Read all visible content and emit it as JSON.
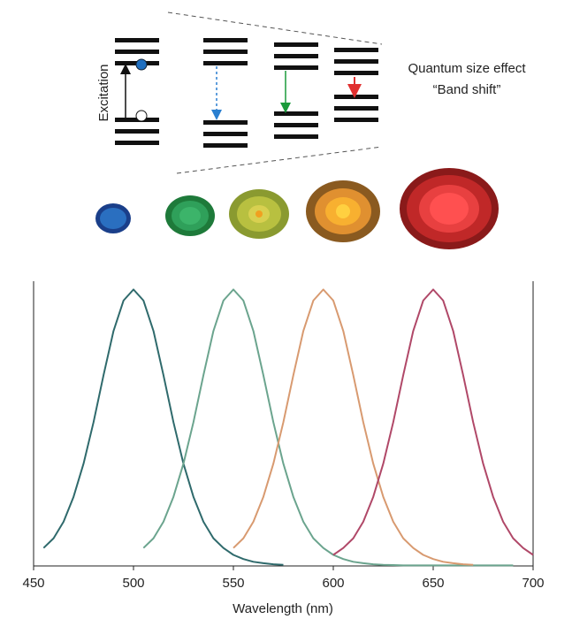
{
  "diagram": {
    "excitation_label": "Excitation",
    "title": "Quantum size effect",
    "subtitle": "“Band shift”"
  },
  "chart_data": {
    "type": "line",
    "x_label": "Wavelength (nm)",
    "x": [
      455,
      460,
      465,
      470,
      475,
      480,
      485,
      490,
      495,
      500,
      505,
      510,
      515,
      520,
      525,
      530,
      535,
      540,
      545,
      550,
      555,
      560,
      565,
      570,
      575,
      580,
      585,
      590,
      595,
      600,
      605,
      610,
      615,
      620,
      625,
      630,
      635,
      640,
      645,
      650,
      655,
      660,
      665,
      670,
      675,
      680,
      685,
      690,
      695,
      700
    ],
    "series": [
      {
        "color": "#2f6a6c",
        "values": [
          0.065,
          0.1,
          0.16,
          0.25,
          0.37,
          0.52,
          0.69,
          0.85,
          0.96,
          1,
          0.96,
          0.85,
          0.69,
          0.52,
          0.37,
          0.25,
          0.16,
          0.1,
          0.065,
          0.04,
          0.025,
          0.015,
          0.01,
          0.006,
          0.004,
          null,
          null,
          null,
          null,
          null,
          null,
          null,
          null,
          null,
          null,
          null,
          null,
          null,
          null,
          null,
          null,
          null,
          null,
          null,
          null,
          null,
          null,
          null,
          null,
          null
        ]
      },
      {
        "color": "#6ba48e",
        "values": [
          null,
          null,
          null,
          null,
          null,
          null,
          null,
          null,
          null,
          null,
          0.065,
          0.1,
          0.16,
          0.25,
          0.37,
          0.52,
          0.69,
          0.85,
          0.96,
          1,
          0.96,
          0.85,
          0.69,
          0.52,
          0.37,
          0.25,
          0.16,
          0.1,
          0.065,
          0.04,
          0.025,
          0.015,
          0.01,
          0.006,
          0.004,
          0.003,
          0.002,
          0.002,
          0.002,
          0.002,
          0.002,
          0.002,
          0.002,
          0.002,
          0.002,
          0.002,
          0.002,
          0.002,
          null,
          null
        ]
      },
      {
        "color": "#d89a70",
        "values": [
          null,
          null,
          null,
          null,
          null,
          null,
          null,
          null,
          null,
          null,
          null,
          null,
          null,
          null,
          null,
          null,
          null,
          null,
          null,
          0.065,
          0.1,
          0.16,
          0.25,
          0.37,
          0.52,
          0.69,
          0.85,
          0.96,
          1,
          0.96,
          0.85,
          0.69,
          0.52,
          0.37,
          0.25,
          0.16,
          0.1,
          0.065,
          0.04,
          0.025,
          0.015,
          0.01,
          0.006,
          0.004,
          null,
          null,
          null,
          null,
          null,
          null
        ]
      },
      {
        "color": "#b04868",
        "values": [
          null,
          null,
          null,
          null,
          null,
          null,
          null,
          null,
          null,
          null,
          null,
          null,
          null,
          null,
          null,
          null,
          null,
          null,
          null,
          null,
          null,
          null,
          null,
          null,
          null,
          null,
          null,
          null,
          null,
          0.04,
          0.065,
          0.1,
          0.16,
          0.25,
          0.37,
          0.52,
          0.69,
          0.85,
          0.96,
          1,
          0.96,
          0.85,
          0.69,
          0.52,
          0.37,
          0.25,
          0.16,
          0.1,
          0.065,
          0.04
        ]
      }
    ],
    "xlim": [
      450,
      700
    ],
    "xticks": [
      450,
      500,
      550,
      600,
      650,
      700
    ],
    "ylim": [
      0,
      1.03
    ]
  }
}
